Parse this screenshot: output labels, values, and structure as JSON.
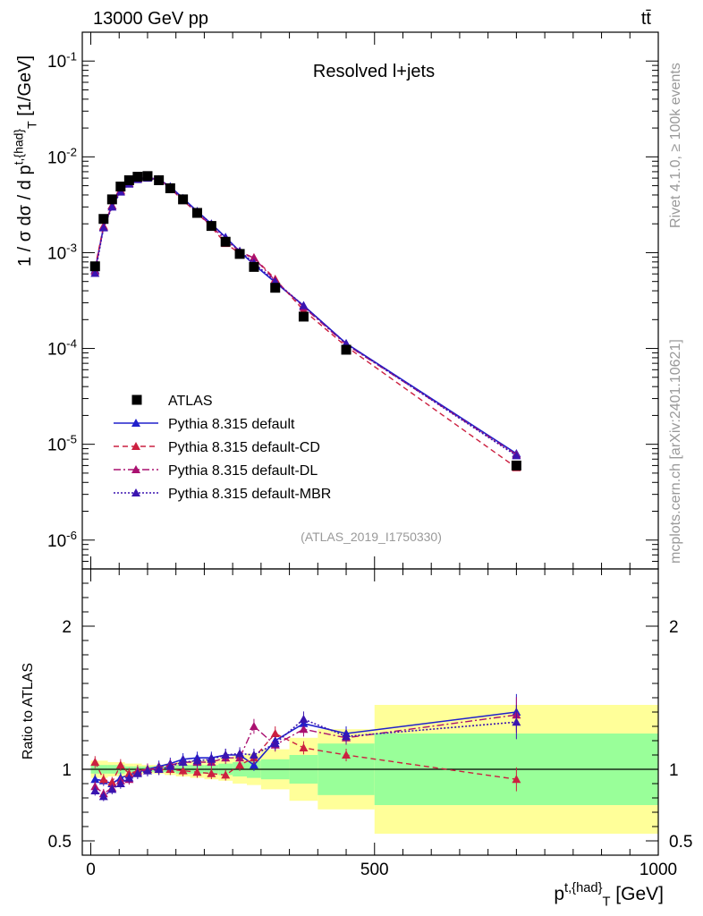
{
  "header": {
    "energy_label": "13000 GeV pp",
    "process_label": "tt̄",
    "plot_title": "Resolved l+jets",
    "analysis_id": "(ATLAS_2019_I1750330)",
    "rivet_label": "Rivet 4.1.0, ≥ 100k events",
    "mcplots_label": "mcplots.cern.ch [arXiv:2401.10621]"
  },
  "chart_data": [
    {
      "type": "scatter",
      "panel": "main",
      "ylabel": "1 / σ dσ / d p^{t,{had}}_{T} [1/GeV]",
      "yscale": "log",
      "ylim": [
        5e-07,
        0.2
      ],
      "xlim": [
        -15,
        1000
      ],
      "ytick_labels": [
        "10^{-1}",
        "10^{-2}",
        "10^{-3}",
        "10^{-4}",
        "10^{-5}",
        "10^{-6}"
      ],
      "x": [
        7.5,
        22.5,
        37.5,
        52.5,
        67.5,
        82.5,
        100,
        120,
        140,
        162.5,
        187.5,
        212.5,
        237.5,
        262.5,
        287.5,
        325,
        375,
        450,
        750
      ],
      "series": [
        {
          "name": "ATLAS",
          "color": "#000000",
          "values": [
            0.00072,
            0.00225,
            0.0036,
            0.0049,
            0.0057,
            0.0062,
            0.0063,
            0.0057,
            0.0047,
            0.0036,
            0.0026,
            0.0019,
            0.0013,
            0.00097,
            0.00071,
            0.00043,
            0.000215,
            9.7e-05,
            6e-06
          ]
        },
        {
          "name": "Pythia 8.315 default",
          "color": "#2020cc",
          "values": [
            0.00066,
            0.00185,
            0.0031,
            0.0044,
            0.0053,
            0.0059,
            0.0061,
            0.0058,
            0.0049,
            0.0037,
            0.0027,
            0.002,
            0.00145,
            0.00103,
            0.00075,
            0.00049,
            0.00028,
            0.000113,
            8e-06
          ]
        },
        {
          "name": "Pythia 8.315 default-CD",
          "color": "#cc2040",
          "values": [
            0.0007,
            0.0019,
            0.0031,
            0.0045,
            0.0053,
            0.0059,
            0.0061,
            0.0057,
            0.0047,
            0.0035,
            0.0026,
            0.00185,
            0.00125,
            0.00098,
            0.00089,
            0.00053,
            0.00025,
            0.000105,
            5.7e-06
          ]
        },
        {
          "name": "Pythia 8.315 default-DL",
          "color": "#aa1070",
          "values": [
            0.00064,
            0.00185,
            0.0031,
            0.0044,
            0.0053,
            0.0059,
            0.0061,
            0.0058,
            0.0048,
            0.0036,
            0.0026,
            0.0019,
            0.00135,
            0.00103,
            0.00088,
            0.00051,
            0.00027,
            0.00011,
            7.8e-06
          ]
        },
        {
          "name": "Pythia 8.315 default-MBR",
          "color": "#3a14b0",
          "values": [
            0.00061,
            0.00182,
            0.003,
            0.0043,
            0.0052,
            0.0058,
            0.006,
            0.0057,
            0.0048,
            0.0036,
            0.0027,
            0.002,
            0.00142,
            0.00104,
            0.00078,
            0.0005,
            0.00028,
            0.000112,
            7.6e-06
          ]
        }
      ]
    },
    {
      "type": "line",
      "panel": "ratio",
      "ylabel": "Ratio to ATLAS",
      "xlabel": "p^{t,{had}}_{T} [GeV]",
      "ylim": [
        0.4,
        2.4
      ],
      "xlim": [
        -15,
        1000
      ],
      "xtick_labels": [
        "0",
        "500",
        "1000"
      ],
      "ytick_labels": [
        "0.5",
        "1",
        "2"
      ],
      "bin_edges": [
        0,
        15,
        30,
        45,
        60,
        75,
        90,
        110,
        130,
        150,
        175,
        200,
        225,
        250,
        275,
        300,
        350,
        400,
        500,
        1000
      ],
      "band_green_half_width": [
        0.03,
        0.03,
        0.03,
        0.03,
        0.02,
        0.02,
        0.02,
        0.02,
        0.02,
        0.03,
        0.03,
        0.03,
        0.04,
        0.05,
        0.06,
        0.07,
        0.1,
        0.18,
        0.25
      ],
      "band_yellow_half_width": [
        0.06,
        0.06,
        0.05,
        0.05,
        0.04,
        0.04,
        0.03,
        0.03,
        0.04,
        0.05,
        0.06,
        0.07,
        0.08,
        0.1,
        0.11,
        0.14,
        0.22,
        0.28,
        0.45
      ],
      "x": [
        7.5,
        22.5,
        37.5,
        52.5,
        67.5,
        82.5,
        100,
        120,
        140,
        162.5,
        187.5,
        212.5,
        237.5,
        262.5,
        287.5,
        325,
        375,
        450,
        750
      ],
      "series": [
        {
          "name": "Pythia 8.315 default",
          "color": "#2020cc",
          "values": [
            0.93,
            0.92,
            0.9,
            0.94,
            0.96,
            0.98,
            1.0,
            1.02,
            1.04,
            1.07,
            1.08,
            1.08,
            1.1,
            1.1,
            1.03,
            1.2,
            1.32,
            1.25,
            1.4
          ]
        },
        {
          "name": "Pythia 8.315 default-CD",
          "color": "#cc2040",
          "values": [
            1.05,
            0.93,
            0.91,
            1.03,
            0.97,
            0.99,
            1.0,
            1.0,
            1.0,
            0.99,
            0.98,
            0.97,
            0.96,
            1.03,
            1.08,
            1.25,
            1.15,
            1.1,
            0.93
          ]
        },
        {
          "name": "Pythia 8.315 default-DL",
          "color": "#aa1070",
          "values": [
            0.88,
            0.83,
            0.87,
            0.92,
            0.93,
            0.98,
            1.0,
            1.01,
            1.03,
            1.05,
            1.05,
            1.05,
            1.08,
            1.08,
            1.3,
            1.17,
            1.28,
            1.22,
            1.38
          ]
        },
        {
          "name": "Pythia 8.315 default-MBR",
          "color": "#3a14b0",
          "values": [
            0.85,
            0.81,
            0.86,
            0.9,
            0.94,
            0.97,
            0.99,
            1.0,
            1.02,
            1.05,
            1.06,
            1.07,
            1.1,
            1.11,
            1.1,
            1.18,
            1.35,
            1.23,
            1.33
          ]
        }
      ]
    }
  ]
}
